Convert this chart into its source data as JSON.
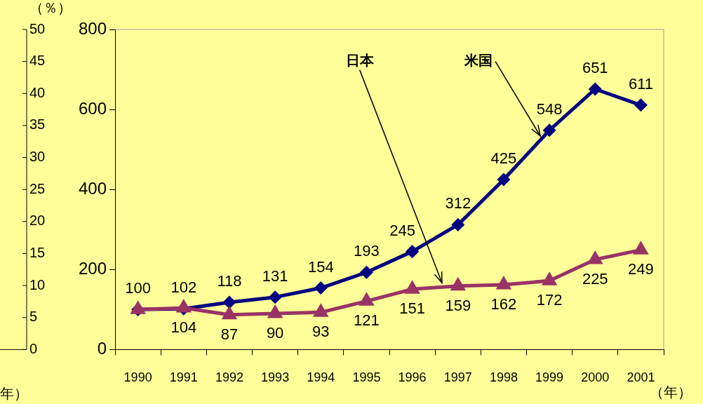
{
  "chart_data": {
    "type": "line",
    "xlabel": "（年）",
    "categories": [
      "1990",
      "1991",
      "1992",
      "1993",
      "1994",
      "1995",
      "1996",
      "1997",
      "1998",
      "1999",
      "2000",
      "2001"
    ],
    "ylim": [
      0,
      800
    ],
    "yticks": [
      0,
      200,
      400,
      600,
      800
    ],
    "y2label": "（％）",
    "y2lim": [
      0,
      50
    ],
    "y2ticks": [
      0,
      5,
      10,
      15,
      20,
      25,
      30,
      35,
      40,
      45,
      50
    ],
    "annotations": [
      "年）"
    ],
    "legend": false,
    "grid": false,
    "line_style": "solid",
    "series": [
      {
        "name": "米国",
        "color": "#000080",
        "marker": "diamond",
        "values": [
          100,
          102,
          118,
          131,
          154,
          193,
          245,
          312,
          425,
          548,
          651,
          611
        ],
        "value_labels": [
          "100",
          "102",
          "118",
          "131",
          "154",
          "193",
          "245",
          "312",
          "425",
          "548",
          "651",
          "611"
        ]
      },
      {
        "name": "日本",
        "color": "#993366",
        "marker": "triangle",
        "values": [
          100,
          104,
          87,
          90,
          93,
          121,
          151,
          159,
          162,
          172,
          225,
          249
        ],
        "value_labels": [
          null,
          "104",
          "87",
          "90",
          "93",
          "121",
          "151",
          "159",
          "162",
          "172",
          "225",
          "249"
        ]
      }
    ]
  }
}
